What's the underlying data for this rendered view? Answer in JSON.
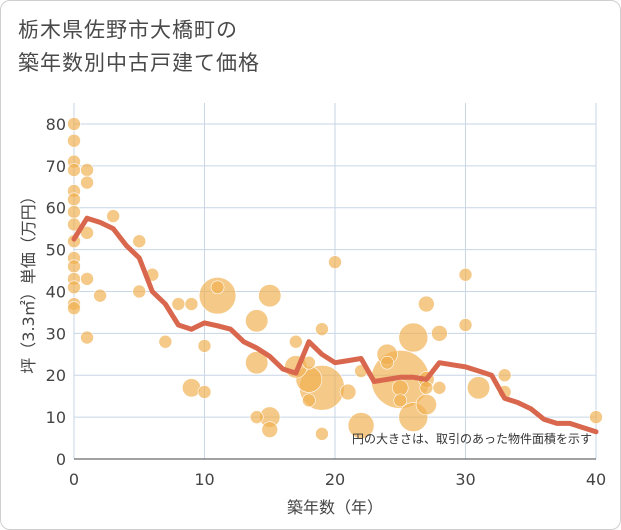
{
  "title_lines": [
    "栃木県佐野市大橋町の",
    "築年数別中古戸建て価格"
  ],
  "chart_data": {
    "type": "scatter",
    "title": "栃木県佐野市大橋町の築年数別中古戸建て価格",
    "xlabel": "築年数（年）",
    "ylabel": "坪（3.3㎡）単価（万円）",
    "xlim": [
      0,
      40
    ],
    "ylim": [
      0,
      85
    ],
    "xticks": [
      0,
      10,
      20,
      30,
      40
    ],
    "yticks": [
      0,
      10,
      20,
      30,
      40,
      50,
      60,
      70,
      80
    ],
    "grid": true,
    "note": "円の大きさは、取引のあった物件面積を示す",
    "colors": {
      "bubble": "#f0b050",
      "line": "#d9674e",
      "grid": "#c8d6e6",
      "axis": "#444444"
    },
    "points": [
      {
        "x": 0,
        "y": 80,
        "size": 1
      },
      {
        "x": 0,
        "y": 76,
        "size": 1
      },
      {
        "x": 0,
        "y": 71,
        "size": 1
      },
      {
        "x": 0,
        "y": 69,
        "size": 1
      },
      {
        "x": 0,
        "y": 64,
        "size": 1
      },
      {
        "x": 0,
        "y": 62,
        "size": 1
      },
      {
        "x": 0,
        "y": 59,
        "size": 1
      },
      {
        "x": 0,
        "y": 56,
        "size": 1
      },
      {
        "x": 0,
        "y": 52,
        "size": 1
      },
      {
        "x": 0,
        "y": 48,
        "size": 1
      },
      {
        "x": 0,
        "y": 46,
        "size": 1
      },
      {
        "x": 0,
        "y": 43,
        "size": 1
      },
      {
        "x": 0,
        "y": 41,
        "size": 1
      },
      {
        "x": 0,
        "y": 37,
        "size": 1
      },
      {
        "x": 0,
        "y": 36,
        "size": 1
      },
      {
        "x": 1,
        "y": 69,
        "size": 1
      },
      {
        "x": 1,
        "y": 66,
        "size": 1
      },
      {
        "x": 1,
        "y": 54,
        "size": 1
      },
      {
        "x": 1,
        "y": 43,
        "size": 1
      },
      {
        "x": 1,
        "y": 29,
        "size": 1
      },
      {
        "x": 2,
        "y": 39,
        "size": 1
      },
      {
        "x": 3,
        "y": 58,
        "size": 1
      },
      {
        "x": 5,
        "y": 52,
        "size": 1
      },
      {
        "x": 5,
        "y": 40,
        "size": 1
      },
      {
        "x": 6,
        "y": 44,
        "size": 1
      },
      {
        "x": 7,
        "y": 28,
        "size": 1
      },
      {
        "x": 8,
        "y": 37,
        "size": 1
      },
      {
        "x": 9,
        "y": 37,
        "size": 1
      },
      {
        "x": 9,
        "y": 17,
        "size": 2
      },
      {
        "x": 10,
        "y": 27,
        "size": 1
      },
      {
        "x": 10,
        "y": 16,
        "size": 1
      },
      {
        "x": 11,
        "y": 39,
        "size": 8
      },
      {
        "x": 11,
        "y": 41,
        "size": 1
      },
      {
        "x": 14,
        "y": 33,
        "size": 3
      },
      {
        "x": 14,
        "y": 23,
        "size": 3
      },
      {
        "x": 14,
        "y": 10,
        "size": 1
      },
      {
        "x": 15,
        "y": 39,
        "size": 3
      },
      {
        "x": 15,
        "y": 10,
        "size": 2.5
      },
      {
        "x": 15,
        "y": 7,
        "size": 1.5
      },
      {
        "x": 17,
        "y": 28,
        "size": 1
      },
      {
        "x": 17,
        "y": 22,
        "size": 3
      },
      {
        "x": 18,
        "y": 23,
        "size": 1
      },
      {
        "x": 18,
        "y": 19,
        "size": 4
      },
      {
        "x": 18,
        "y": 14,
        "size": 1
      },
      {
        "x": 19,
        "y": 17,
        "size": 12
      },
      {
        "x": 19,
        "y": 31,
        "size": 1
      },
      {
        "x": 19,
        "y": 6,
        "size": 1
      },
      {
        "x": 20,
        "y": 47,
        "size": 1
      },
      {
        "x": 21,
        "y": 16,
        "size": 1.5
      },
      {
        "x": 22,
        "y": 21,
        "size": 1
      },
      {
        "x": 22,
        "y": 8,
        "size": 4
      },
      {
        "x": 24,
        "y": 25,
        "size": 2.5
      },
      {
        "x": 24,
        "y": 23,
        "size": 1
      },
      {
        "x": 25,
        "y": 19,
        "size": 20
      },
      {
        "x": 25,
        "y": 17,
        "size": 1.5
      },
      {
        "x": 25,
        "y": 14,
        "size": 1
      },
      {
        "x": 26,
        "y": 29,
        "size": 5
      },
      {
        "x": 26,
        "y": 10,
        "size": 5
      },
      {
        "x": 27,
        "y": 37,
        "size": 1.5
      },
      {
        "x": 27,
        "y": 19,
        "size": 1.5
      },
      {
        "x": 27,
        "y": 17,
        "size": 1
      },
      {
        "x": 27,
        "y": 13,
        "size": 2.5
      },
      {
        "x": 28,
        "y": 30,
        "size": 1.5
      },
      {
        "x": 28,
        "y": 17,
        "size": 1
      },
      {
        "x": 30,
        "y": 44,
        "size": 1
      },
      {
        "x": 30,
        "y": 32,
        "size": 1
      },
      {
        "x": 31,
        "y": 17,
        "size": 3
      },
      {
        "x": 33,
        "y": 20,
        "size": 1
      },
      {
        "x": 33,
        "y": 16,
        "size": 1
      },
      {
        "x": 40,
        "y": 10,
        "size": 1
      }
    ],
    "trend": {
      "x": [
        0,
        1,
        2,
        3,
        4,
        5,
        6,
        7,
        8,
        9,
        10,
        11,
        12,
        13,
        14,
        15,
        16,
        17,
        18,
        19,
        20,
        21,
        22,
        23,
        24,
        25,
        26,
        27,
        28,
        29,
        30,
        31,
        32,
        33,
        34,
        35,
        36,
        37,
        38,
        39,
        40
      ],
      "y": [
        52.5,
        57.5,
        56.5,
        55,
        51,
        48,
        40,
        37,
        32,
        31,
        32.5,
        31.8,
        31,
        28,
        26.5,
        24.5,
        21.5,
        20.5,
        28,
        25,
        23,
        23.5,
        24,
        18.5,
        19,
        19.5,
        19.5,
        19,
        23,
        22.5,
        22,
        21,
        20,
        14.5,
        13.5,
        12,
        9.5,
        8.5,
        8.5,
        7.5,
        6.5
      ]
    }
  }
}
